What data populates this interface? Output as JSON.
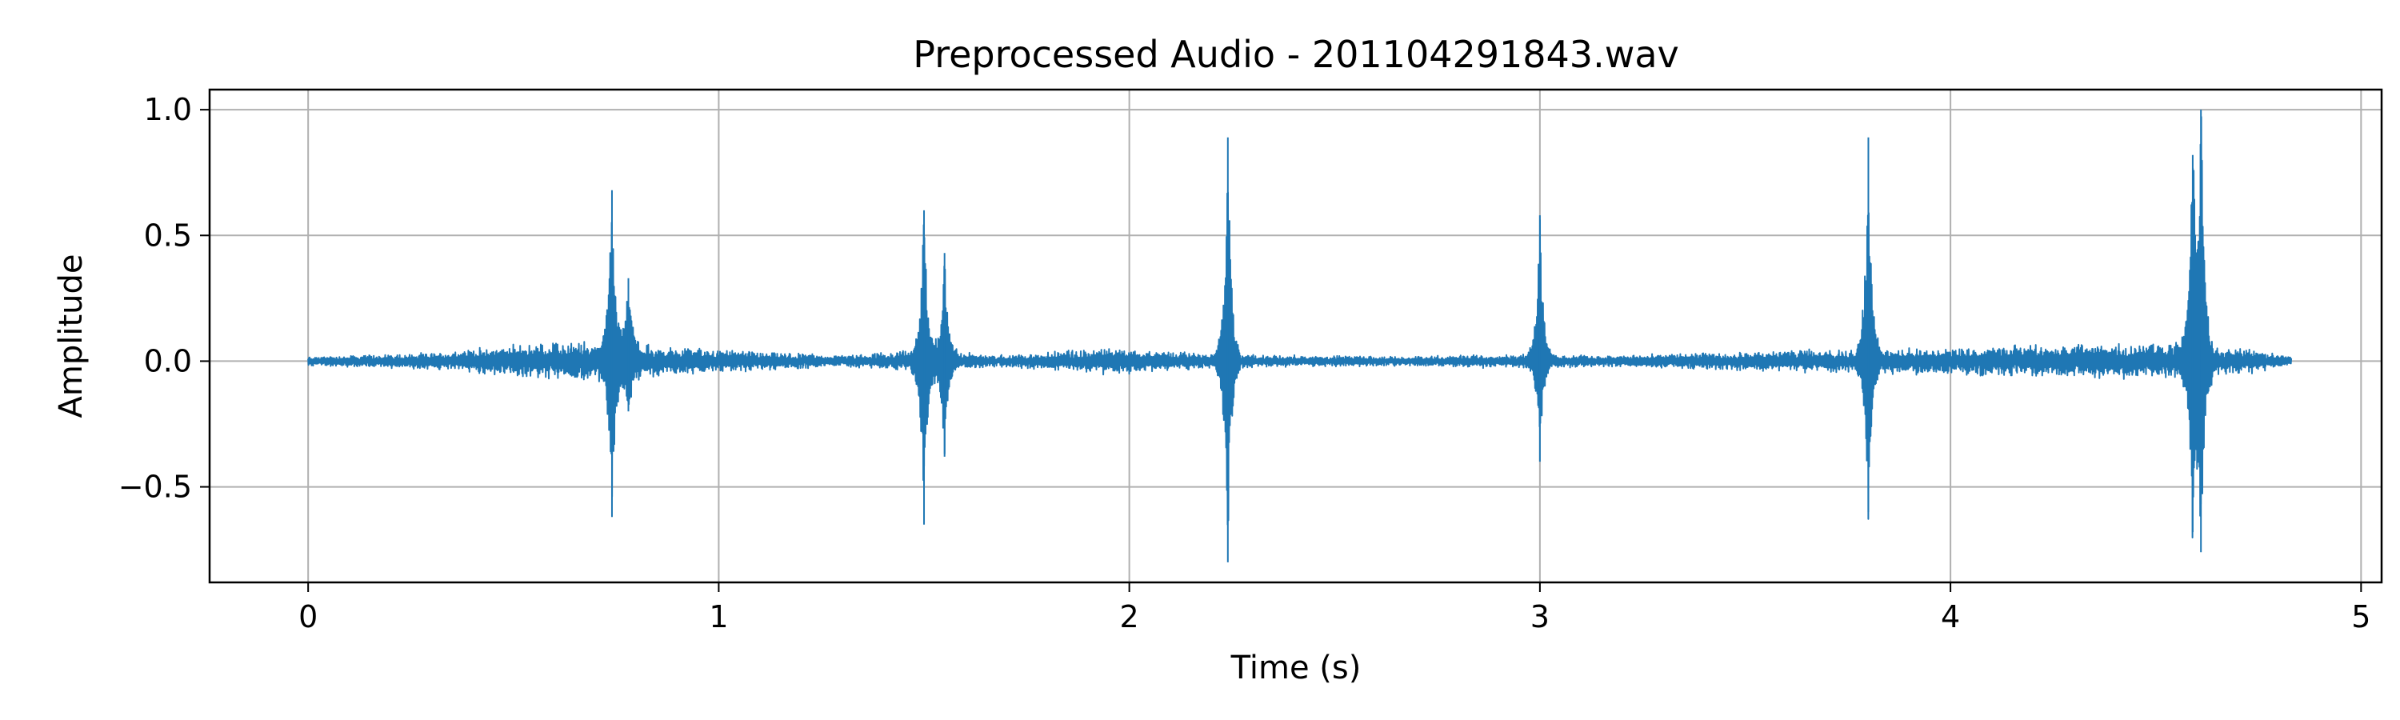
{
  "chart_data": {
    "type": "line",
    "title": "Preprocessed Audio - 201104291843.wav",
    "xlabel": "Time (s)",
    "ylabel": "Amplitude",
    "xlim": [
      -0.24,
      5.05
    ],
    "ylim": [
      -0.88,
      1.08
    ],
    "x_ticks": [
      0,
      1,
      2,
      3,
      4,
      5
    ],
    "x_tick_labels": [
      "0",
      "1",
      "2",
      "3",
      "4",
      "5"
    ],
    "y_ticks": [
      -0.5,
      0.0,
      0.5,
      1.0
    ],
    "y_tick_labels": [
      "−0.5",
      "0.0",
      "0.5",
      "1.0"
    ],
    "grid": true,
    "color": "#1f77b4",
    "duration": 4.83,
    "noise_envelope": [
      {
        "t": 0.0,
        "a": 0.02
      },
      {
        "t": 0.3,
        "a": 0.035
      },
      {
        "t": 0.5,
        "a": 0.07
      },
      {
        "t": 0.7,
        "a": 0.09
      },
      {
        "t": 0.9,
        "a": 0.06
      },
      {
        "t": 1.1,
        "a": 0.04
      },
      {
        "t": 1.3,
        "a": 0.025
      },
      {
        "t": 1.5,
        "a": 0.05
      },
      {
        "t": 1.7,
        "a": 0.025
      },
      {
        "t": 1.95,
        "a": 0.06
      },
      {
        "t": 2.1,
        "a": 0.04
      },
      {
        "t": 2.35,
        "a": 0.025
      },
      {
        "t": 2.7,
        "a": 0.02
      },
      {
        "t": 2.9,
        "a": 0.03
      },
      {
        "t": 3.2,
        "a": 0.025
      },
      {
        "t": 3.4,
        "a": 0.035
      },
      {
        "t": 3.7,
        "a": 0.05
      },
      {
        "t": 4.0,
        "a": 0.06
      },
      {
        "t": 4.3,
        "a": 0.075
      },
      {
        "t": 4.55,
        "a": 0.085
      },
      {
        "t": 4.7,
        "a": 0.06
      },
      {
        "t": 4.83,
        "a": 0.02
      }
    ],
    "peaks": [
      {
        "t": 0.74,
        "max": 0.68,
        "min": -0.62
      },
      {
        "t": 0.78,
        "max": 0.33,
        "min": -0.2
      },
      {
        "t": 1.5,
        "max": 0.6,
        "min": -0.65
      },
      {
        "t": 1.55,
        "max": 0.43,
        "min": -0.38
      },
      {
        "t": 2.24,
        "max": 0.89,
        "min": -0.8
      },
      {
        "t": 3.0,
        "max": 0.58,
        "min": -0.4
      },
      {
        "t": 3.8,
        "max": 0.89,
        "min": -0.6
      },
      {
        "t": 4.59,
        "max": 0.82,
        "min": -0.68
      },
      {
        "t": 4.61,
        "max": 1.0,
        "min": -0.76
      }
    ]
  }
}
